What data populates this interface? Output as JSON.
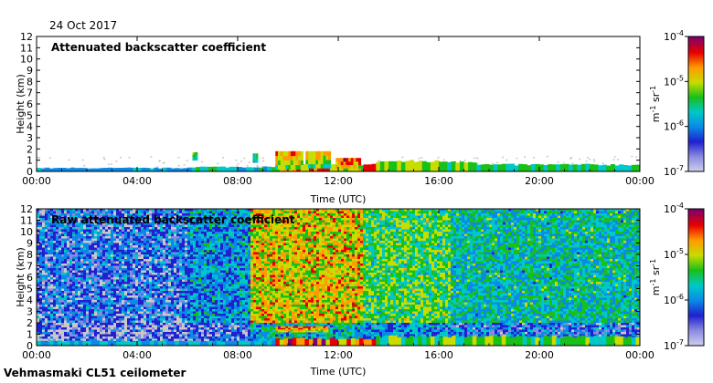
{
  "date": "24 Oct 2017",
  "footer": "Vehmasmaki CL51 ceilometer",
  "colors": {
    "colormap": [
      "#cfcfef",
      "#8a8ae0",
      "#2020d0",
      "#0a8ae6",
      "#00c8c8",
      "#18c018",
      "#c8dc00",
      "#ff9a00",
      "#e60000",
      "#7a0070"
    ],
    "background_noise": "#c8c8c8"
  },
  "chart_data": [
    {
      "type": "heatmap",
      "title": "Attenuated backscatter coefficient",
      "xlabel": "Time (UTC)",
      "ylabel": "Height (km)",
      "x_ticks": [
        "00:00",
        "04:00",
        "08:00",
        "12:00",
        "16:00",
        "20:00",
        "00:00"
      ],
      "xlim_hours": [
        0,
        24
      ],
      "ylim_km": [
        0,
        12
      ],
      "y_ticks": [
        "0",
        "1",
        "2",
        "3",
        "4",
        "5",
        "6",
        "7",
        "8",
        "9",
        "10",
        "11",
        "12"
      ],
      "colorbar": {
        "label": "m-1 sr-1",
        "ticks": [
          "10-4",
          "10-5",
          "10-6",
          "10-7"
        ],
        "scale": "log",
        "range": [
          1e-07,
          0.0001
        ]
      },
      "layers": [
        {
          "start_h": 0,
          "end_h": 6,
          "top_km": 0.3,
          "level": 0.35
        },
        {
          "start_h": 6,
          "end_h": 9.5,
          "top_km": 0.4,
          "level": 0.45
        },
        {
          "start_h": 9.5,
          "end_h": 13.5,
          "top_km": 0.6,
          "level": 0.75
        },
        {
          "start_h": 13.5,
          "end_h": 17.5,
          "top_km": 0.9,
          "level": 0.6
        },
        {
          "start_h": 17.5,
          "end_h": 24,
          "top_km": 0.6,
          "level": 0.5
        }
      ],
      "clouds": [
        {
          "start_h": 6.2,
          "end_h": 6.4,
          "bottom_km": 1.0,
          "top_km": 1.7,
          "level": 0.6
        },
        {
          "start_h": 8.6,
          "end_h": 8.8,
          "bottom_km": 0.8,
          "top_km": 1.6,
          "level": 0.6
        },
        {
          "start_h": 9.5,
          "end_h": 10.6,
          "bottom_km": 0.2,
          "top_km": 1.8,
          "level": 0.85
        },
        {
          "start_h": 10.7,
          "end_h": 11.7,
          "bottom_km": 0.3,
          "top_km": 1.8,
          "level": 0.8
        },
        {
          "start_h": 11.9,
          "end_h": 12.9,
          "bottom_km": 0.0,
          "top_km": 1.2,
          "level": 0.9
        }
      ]
    },
    {
      "type": "heatmap",
      "title": "Raw attenuated backscatter coefficient",
      "xlabel": "Time (UTC)",
      "ylabel": "Height (km)",
      "x_ticks": [
        "00:00",
        "04:00",
        "08:00",
        "12:00",
        "16:00",
        "20:00",
        "00:00"
      ],
      "xlim_hours": [
        0,
        24
      ],
      "ylim_km": [
        0,
        12
      ],
      "y_ticks": [
        "0",
        "1",
        "2",
        "3",
        "4",
        "5",
        "6",
        "7",
        "8",
        "9",
        "10",
        "11",
        "12"
      ],
      "colorbar": {
        "label": "m-1 sr-1",
        "ticks": [
          "10-4",
          "10-5",
          "10-6",
          "10-7"
        ],
        "scale": "log",
        "range": [
          1e-07,
          0.0001
        ]
      },
      "noise_profile": [
        {
          "start_h": 0,
          "end_h": 6,
          "level": 0.25
        },
        {
          "start_h": 6,
          "end_h": 8.5,
          "level": 0.35
        },
        {
          "start_h": 8.5,
          "end_h": 13,
          "level": 0.7
        },
        {
          "start_h": 13,
          "end_h": 16.5,
          "level": 0.55
        },
        {
          "start_h": 16.5,
          "end_h": 24,
          "level": 0.45
        }
      ],
      "layers": [
        {
          "start_h": 0,
          "end_h": 9.5,
          "top_km": 0.4,
          "level": 0.4
        },
        {
          "start_h": 9.5,
          "end_h": 13.5,
          "top_km": 0.6,
          "level": 0.8
        },
        {
          "start_h": 13.5,
          "end_h": 24,
          "top_km": 0.8,
          "level": 0.55
        }
      ],
      "clouds": [
        {
          "start_h": 9.5,
          "end_h": 11.6,
          "bottom_km": 1.2,
          "top_km": 1.7,
          "level": 0.9
        }
      ]
    }
  ]
}
